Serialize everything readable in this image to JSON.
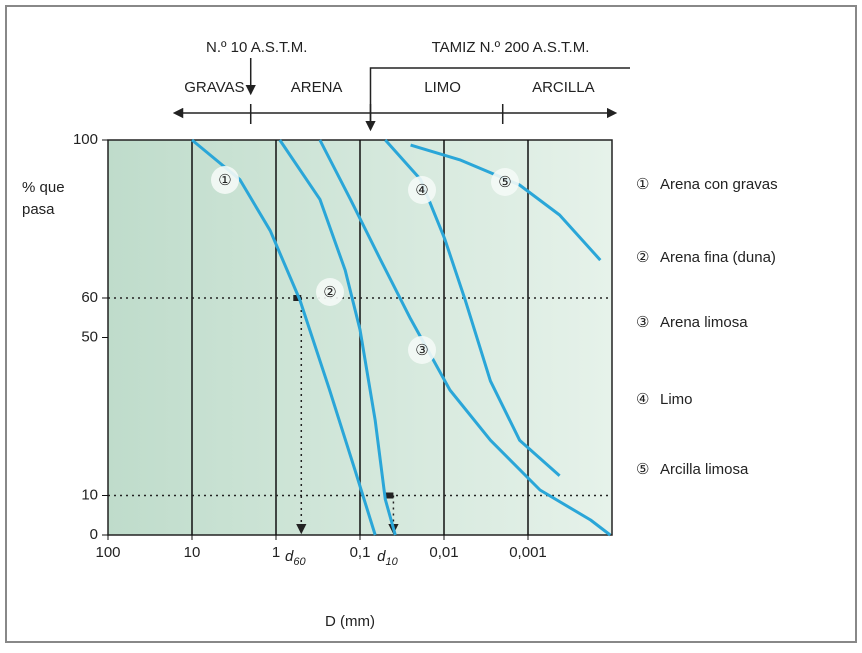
{
  "chart_data": {
    "type": "line",
    "xlabel": "D (mm)",
    "ylabel_lines": [
      "% que",
      "pasa"
    ],
    "log_x": true,
    "xlim": [
      100,
      0.0001
    ],
    "xticks": [
      100,
      10,
      1,
      {
        "value": 0.1,
        "label": "0,1"
      },
      {
        "value": 0.01,
        "label": "0,01"
      },
      {
        "value": 0.001,
        "label": "0,001"
      }
    ],
    "ylim": [
      0,
      100
    ],
    "yticks": [
      0,
      10,
      50,
      60,
      100
    ],
    "grid_x": true,
    "sieves": [
      {
        "label": "N.º 10 A.S.T.M.",
        "x": 2
      },
      {
        "label": "TAMIZ N.º 200 A.S.T.M.",
        "x": 0.075
      }
    ],
    "zones": [
      "GRAVAS",
      "ARENA",
      "LIMO",
      "ARCILLA"
    ],
    "zone_boundaries": [
      2,
      0.075,
      0.002
    ],
    "annotations": [
      {
        "symbol": "d",
        "subscript": "60",
        "x": 0.5,
        "y": 60
      },
      {
        "symbol": "d",
        "subscript": "10",
        "x": 0.04,
        "y": 10
      }
    ],
    "series": [
      {
        "marker": "①",
        "name": "Arena con gravas",
        "color": "#2aa6d8",
        "x": [
          10,
          2.7,
          1.17,
          0.52,
          0.23,
          0.115,
          0.066
        ],
        "values": [
          100,
          90,
          77,
          59.5,
          36.7,
          16.5,
          0
        ]
      },
      {
        "marker": "②",
        "name": "Arena fina (duna)",
        "color": "#2aa6d8",
        "x": [
          0.9,
          0.3,
          0.15,
          0.1,
          0.066,
          0.05,
          0.038
        ],
        "values": [
          100,
          85,
          67,
          52,
          29,
          9,
          0
        ]
      },
      {
        "marker": "③",
        "name": "Arena limosa",
        "color": "#2aa6d8",
        "x": [
          0.3,
          0.13,
          0.058,
          0.025,
          0.0085,
          0.0028,
          0.00072,
          0.00018,
          0.000105
        ],
        "values": [
          100,
          85,
          70,
          54.7,
          36.7,
          24,
          11.4,
          3.8,
          0
        ]
      },
      {
        "marker": "④",
        "name": "Limo",
        "color": "#2aa6d8",
        "x": [
          0.05,
          0.019,
          0.0098,
          0.0056,
          0.0028,
          0.00126,
          0.00042
        ],
        "values": [
          100,
          90,
          75,
          59.5,
          39,
          24,
          15
        ]
      },
      {
        "marker": "⑤",
        "name": "Arcilla limosa",
        "color": "#2aa6d8",
        "x": [
          0.025,
          0.0065,
          0.00126,
          0.00042,
          0.000138
        ],
        "values": [
          98.7,
          95,
          88.6,
          81,
          69.6
        ]
      }
    ]
  }
}
